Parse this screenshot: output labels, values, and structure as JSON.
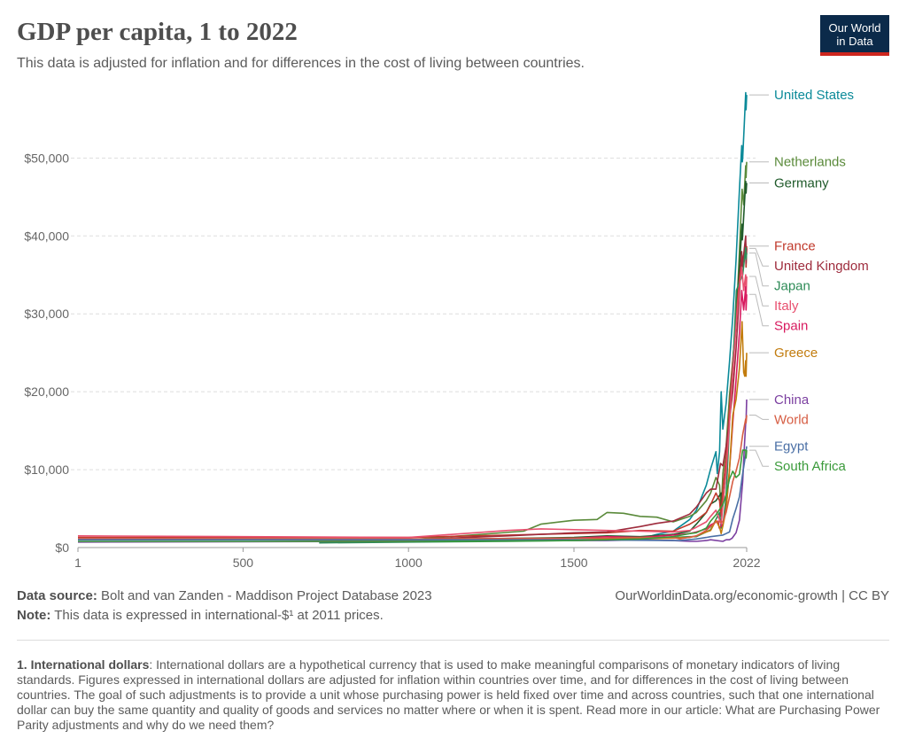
{
  "header": {
    "title": "GDP per capita, 1 to 2022",
    "subtitle": "This data is adjusted for inflation and for differences in the cost of living between countries.",
    "logo_line1": "Our World",
    "logo_line2": "in Data"
  },
  "footer": {
    "source_label": "Data source:",
    "source_text": "Bolt and van Zanden - Maddison Project Database 2023",
    "note_label": "Note:",
    "note_text": "This data is expressed in international-$¹ at 2011 prices.",
    "credit": "OurWorldinData.org/economic-growth | CC BY",
    "footnote_label": "1. International dollars",
    "footnote_text": ": International dollars are a hypothetical currency that is used to make meaningful comparisons of monetary indicators of living standards. Figures expressed in international dollars are adjusted for inflation within countries over time, and for differences in the cost of living between countries. The goal of such adjustments is to provide a unit whose purchasing power is held fixed over time and across countries, such that one international dollar can buy the same quantity and quality of goods and services no matter where or when it is spent. Read more in our article: What are Purchasing Power Parity adjustments and why do we need them?"
  },
  "chart_data": {
    "type": "line",
    "title": "GDP per capita, 1 to 2022",
    "subtitle": "This data is adjusted for inflation and for differences in the cost of living between countries.",
    "xlim": [
      1,
      2022
    ],
    "ylim": [
      0,
      58000
    ],
    "x_ticks": [
      1,
      500,
      1000,
      1500,
      2022
    ],
    "x_tick_labels": [
      "1",
      "500",
      "1000",
      "1500",
      "2022"
    ],
    "y_ticks": [
      0,
      10000,
      20000,
      30000,
      40000,
      50000
    ],
    "y_tick_labels": [
      "$0",
      "$10,000",
      "$20,000",
      "$30,000",
      "$40,000",
      "$50,000"
    ],
    "grid": "horizontal dashed",
    "legend": "inline labels at right end of lines",
    "series": [
      {
        "name": "United States",
        "color": "#0b8a99",
        "x": [
          1500,
          1650,
          1700,
          1750,
          1800,
          1820,
          1850,
          1870,
          1900,
          1913,
          1929,
          1933,
          1940,
          1945,
          1950,
          1960,
          1970,
          1980,
          1990,
          2000,
          2007,
          2009,
          2010,
          2015,
          2019,
          2020,
          2022
        ],
        "y": [
          1000,
          1000,
          1100,
          1700,
          2100,
          2700,
          3600,
          4800,
          8000,
          10100,
          12300,
          9500,
          12300,
          20000,
          15200,
          18500,
          23800,
          29600,
          36900,
          45900,
          51600,
          49500,
          50000,
          54600,
          58400,
          56200,
          58100
        ]
      },
      {
        "name": "Netherlands",
        "color": "#5a8a3a",
        "x": [
          1,
          1000,
          1348,
          1400,
          1500,
          1570,
          1600,
          1650,
          1700,
          1750,
          1800,
          1850,
          1870,
          1900,
          1913,
          1929,
          1940,
          1945,
          1950,
          1960,
          1970,
          1980,
          1990,
          2000,
          2008,
          2013,
          2019,
          2020,
          2022
        ],
        "y": [
          1000,
          1000,
          2100,
          3000,
          3500,
          3600,
          4500,
          4400,
          4000,
          3900,
          3300,
          4000,
          4500,
          6000,
          7000,
          9000,
          8000,
          4500,
          9500,
          13000,
          19500,
          24000,
          28500,
          38000,
          46000,
          44000,
          49000,
          47500,
          49500
        ]
      },
      {
        "name": "Germany",
        "color": "#1f5a2a",
        "x": [
          1,
          1000,
          1500,
          1600,
          1700,
          1800,
          1850,
          1870,
          1900,
          1913,
          1929,
          1945,
          1946,
          1950,
          1960,
          1970,
          1980,
          1990,
          2000,
          2008,
          2009,
          2015,
          2019,
          2020,
          2022
        ],
        "y": [
          1000,
          1000,
          1300,
          1500,
          1400,
          1700,
          2100,
          3000,
          4500,
          5600,
          6000,
          7000,
          4000,
          5500,
          10000,
          17000,
          23500,
          30000,
          36000,
          41500,
          39500,
          44000,
          47000,
          45500,
          46800
        ]
      },
      {
        "name": "France",
        "color": "#c0392b",
        "x": [
          1,
          1000,
          1300,
          1500,
          1600,
          1700,
          1800,
          1850,
          1870,
          1900,
          1913,
          1929,
          1940,
          1944,
          1950,
          1960,
          1970,
          1980,
          1990,
          2000,
          2007,
          2009,
          2019,
          2020,
          2022
        ],
        "y": [
          1300,
          1300,
          1600,
          1800,
          1900,
          2200,
          2100,
          3000,
          3500,
          4500,
          5500,
          7000,
          6000,
          4000,
          7500,
          11500,
          18000,
          24000,
          29500,
          34500,
          37500,
          36500,
          39000,
          36000,
          38700
        ]
      },
      {
        "name": "United Kingdom",
        "color": "#9e2b3c",
        "x": [
          1,
          1000,
          1300,
          1400,
          1500,
          1600,
          1700,
          1750,
          1800,
          1850,
          1870,
          1900,
          1913,
          1929,
          1943,
          1950,
          1960,
          1970,
          1980,
          1990,
          2000,
          2007,
          2009,
          2019,
          2020,
          2022
        ],
        "y": [
          1000,
          1000,
          1500,
          1700,
          1900,
          2000,
          2700,
          3100,
          3400,
          4300,
          5200,
          7000,
          7500,
          7500,
          10800,
          10500,
          13000,
          16500,
          20000,
          25500,
          32500,
          38000,
          36000,
          40000,
          36500,
          38400
        ]
      },
      {
        "name": "Japan",
        "color": "#2e8b57",
        "x": [
          730,
          1000,
          1300,
          1500,
          1600,
          1700,
          1800,
          1850,
          1870,
          1900,
          1913,
          1940,
          1945,
          1950,
          1960,
          1970,
          1980,
          1990,
          1991,
          2000,
          2010,
          2019,
          2020,
          2022
        ],
        "y": [
          600,
          700,
          800,
          900,
          1000,
          1100,
          1300,
          1400,
          1400,
          2000,
          2300,
          4500,
          2500,
          2800,
          6500,
          16000,
          23000,
          32000,
          33000,
          34000,
          35000,
          38500,
          37000,
          37800
        ]
      },
      {
        "name": "Italy",
        "color": "#e8506f",
        "x": [
          1,
          500,
          1000,
          1300,
          1400,
          1500,
          1600,
          1700,
          1800,
          1850,
          1870,
          1900,
          1913,
          1929,
          1945,
          1950,
          1960,
          1970,
          1980,
          1990,
          2000,
          2007,
          2013,
          2019,
          2020,
          2022
        ],
        "y": [
          1500,
          1400,
          1300,
          2200,
          2400,
          2300,
          2200,
          2100,
          2000,
          2200,
          2600,
          3300,
          4000,
          4800,
          3000,
          5400,
          9800,
          16000,
          22500,
          28500,
          33500,
          36000,
          33000,
          35000,
          32000,
          34800
        ]
      },
      {
        "name": "Spain",
        "color": "#d81b60",
        "x": [
          1,
          1000,
          1300,
          1500,
          1600,
          1700,
          1800,
          1850,
          1870,
          1900,
          1913,
          1936,
          1939,
          1950,
          1960,
          1970,
          1980,
          1990,
          2000,
          2007,
          2013,
          2019,
          2020,
          2022
        ],
        "y": [
          1000,
          1000,
          1000,
          1200,
          1400,
          1300,
          1600,
          1800,
          2000,
          2400,
          2900,
          3400,
          2500,
          3000,
          5000,
          10000,
          16000,
          21500,
          27500,
          33000,
          30500,
          33500,
          30500,
          32500
        ]
      },
      {
        "name": "Greece",
        "color": "#c27c0e",
        "x": [
          1,
          1000,
          1500,
          1800,
          1850,
          1870,
          1900,
          1913,
          1929,
          1941,
          1945,
          1950,
          1960,
          1970,
          1980,
          1990,
          2000,
          2008,
          2013,
          2016,
          2019,
          2020,
          2022
        ],
        "y": [
          1100,
          900,
          1000,
          1200,
          1300,
          1500,
          2000,
          2200,
          3500,
          2500,
          1800,
          2800,
          4800,
          10000,
          17000,
          19000,
          23000,
          29000,
          22500,
          22000,
          24000,
          22000,
          25000
        ]
      },
      {
        "name": "China",
        "color": "#7b3fa0",
        "x": [
          1,
          1000,
          1300,
          1500,
          1600,
          1700,
          1800,
          1850,
          1870,
          1900,
          1913,
          1950,
          1960,
          1970,
          1978,
          1990,
          2000,
          2010,
          2015,
          2019,
          2020,
          2022
        ],
        "y": [
          700,
          800,
          900,
          900,
          900,
          1000,
          900,
          800,
          800,
          900,
          1000,
          800,
          1000,
          1000,
          1200,
          1900,
          3500,
          8500,
          13000,
          16000,
          16300,
          19000
        ]
      },
      {
        "name": "World",
        "color": "#d65d43",
        "x": [
          1,
          1000,
          1500,
          1600,
          1700,
          1800,
          1820,
          1870,
          1900,
          1913,
          1929,
          1950,
          1960,
          1970,
          1980,
          1990,
          2000,
          2010,
          2019,
          2020,
          2022
        ],
        "y": [
          1100,
          1100,
          1200,
          1200,
          1300,
          1300,
          1100,
          1500,
          2200,
          2700,
          3300,
          3300,
          4500,
          6500,
          8500,
          9800,
          11500,
          14500,
          16500,
          16000,
          17000
        ]
      },
      {
        "name": "Egypt",
        "color": "#4a6fa5",
        "x": [
          1,
          1000,
          1500,
          1800,
          1820,
          1870,
          1900,
          1913,
          1950,
          1960,
          1970,
          1980,
          1990,
          2000,
          2010,
          2019,
          2022
        ],
        "y": [
          1000,
          1000,
          1000,
          900,
          900,
          1100,
          1300,
          1400,
          1600,
          1800,
          2000,
          3700,
          5000,
          6500,
          9500,
          12000,
          13000
        ]
      },
      {
        "name": "South Africa",
        "color": "#3a9a3a",
        "x": [
          1,
          1000,
          1500,
          1700,
          1800,
          1850,
          1870,
          1900,
          1913,
          1929,
          1950,
          1960,
          1970,
          1980,
          1990,
          2000,
          2008,
          2010,
          2019,
          2020,
          2022
        ],
        "y": [
          800,
          800,
          900,
          1100,
          1400,
          1800,
          1900,
          2500,
          3400,
          4200,
          5500,
          6800,
          8800,
          9800,
          9000,
          9400,
          12000,
          12500,
          12500,
          11500,
          12500
        ]
      }
    ]
  }
}
